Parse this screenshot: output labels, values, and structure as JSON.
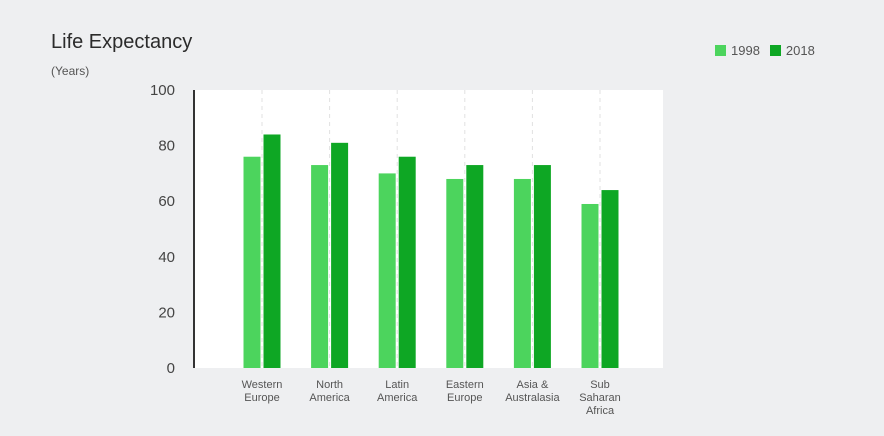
{
  "title": "Life Expectancy",
  "subtitle": "(Years)",
  "colors": {
    "1998": "#4cd45d",
    "2018": "#0ea724",
    "plot_bg": "#ffffff",
    "grid": "#e2e2e2",
    "axis": "#333333"
  },
  "chart_data": {
    "type": "bar",
    "title": "Life Expectancy",
    "subtitle": "(Years)",
    "xlabel": "",
    "ylabel": "",
    "ylim": [
      0,
      100
    ],
    "yticks": [
      0,
      20,
      40,
      60,
      80,
      100
    ],
    "grid": "vertical dashed between categories",
    "legend": "top-right",
    "categories": [
      [
        "Western",
        "Europe"
      ],
      [
        "North",
        "America"
      ],
      [
        "Latin",
        "America"
      ],
      [
        "Eastern",
        "Europe"
      ],
      [
        "Asia &",
        "Australasia"
      ],
      [
        "Sub",
        "Saharan",
        "Africa"
      ]
    ],
    "series": [
      {
        "name": "1998",
        "values": [
          76,
          73,
          70,
          68,
          68,
          59
        ]
      },
      {
        "name": "2018",
        "values": [
          84,
          81,
          76,
          73,
          73,
          64
        ]
      }
    ]
  }
}
